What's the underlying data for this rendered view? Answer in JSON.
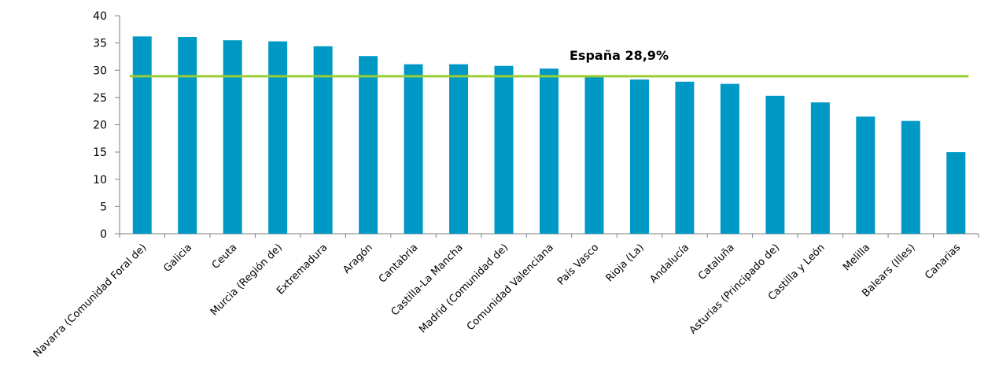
{
  "chart_data": {
    "type": "bar",
    "categories": [
      "Navarra (Comunidad Foral de)",
      "Galicia",
      "Ceuta",
      "Murcia (Región de)",
      "Extremadura",
      "Aragón",
      "Cantabria",
      "Castilla-La Mancha",
      "Madrid (Comunidad de)",
      "Comunidad Valenciana",
      "País Vasco",
      "Rioja (La)",
      "Andalucía",
      "Cataluña",
      "Asturias (Principado de)",
      "Castilla y León",
      "Melilla",
      "Balears (Illes)",
      "Canarias"
    ],
    "values": [
      36.2,
      36.1,
      35.5,
      35.3,
      34.4,
      32.6,
      31.1,
      31.1,
      30.8,
      30.3,
      28.8,
      28.3,
      27.9,
      27.5,
      25.3,
      24.1,
      21.5,
      20.7,
      15.0
    ],
    "reference": {
      "label": "España 28,9%",
      "value": 28.9,
      "color": "#9ACD32"
    },
    "bar_color": "#0099C6",
    "ylim": [
      0,
      40
    ],
    "yticks": [
      "0",
      "5",
      "10",
      "15",
      "20",
      "25",
      "30",
      "35",
      "40"
    ],
    "grid": false,
    "legend": "none"
  }
}
